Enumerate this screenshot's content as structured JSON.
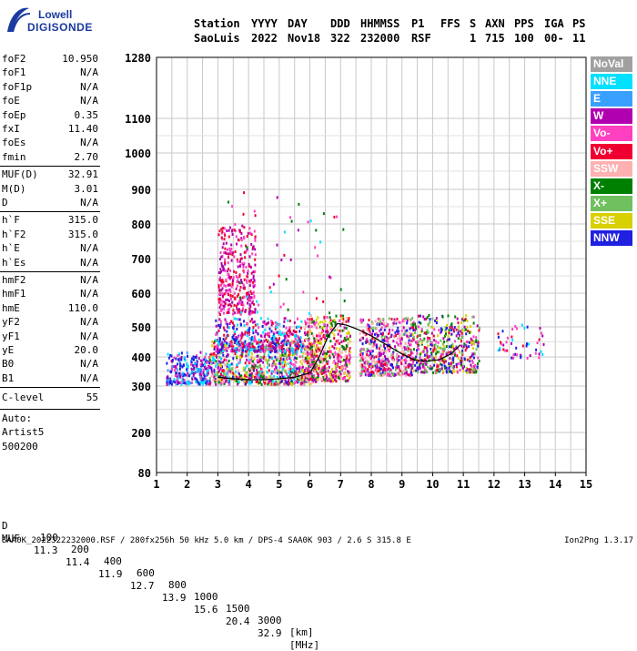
{
  "logo": {
    "line1": "Lowell",
    "line2": "DIGISONDE"
  },
  "header": {
    "row1": [
      "Station",
      "YYYY",
      "DAY",
      "DDD",
      "HHMMSS",
      "P1",
      "FFS",
      "S",
      "AXN",
      "PPS",
      "IGA",
      "PS"
    ],
    "row2": [
      "SaoLuis",
      "2022",
      "Nov18",
      "322",
      "232000",
      "RSF",
      "",
      "1",
      "715",
      "100",
      "00-",
      "11"
    ]
  },
  "params": {
    "group1": [
      {
        "k": "foF2",
        "v": "10.950"
      },
      {
        "k": "foF1",
        "v": "N/A"
      },
      {
        "k": "foF1p",
        "v": "N/A"
      },
      {
        "k": "foE",
        "v": "N/A"
      },
      {
        "k": "foEp",
        "v": "0.35"
      },
      {
        "k": "fxI",
        "v": "11.40"
      },
      {
        "k": "foEs",
        "v": "N/A"
      },
      {
        "k": "fmin",
        "v": "2.70"
      }
    ],
    "group2": [
      {
        "k": "MUF(D)",
        "v": "32.91"
      },
      {
        "k": "M(D)",
        "v": "3.01"
      },
      {
        "k": "D",
        "v": "N/A"
      }
    ],
    "group3": [
      {
        "k": "h`F",
        "v": "315.0"
      },
      {
        "k": "h`F2",
        "v": "315.0"
      },
      {
        "k": "h`E",
        "v": "N/A"
      },
      {
        "k": "h`Es",
        "v": "N/A"
      }
    ],
    "group4": [
      {
        "k": "hmF2",
        "v": "N/A"
      },
      {
        "k": "hmF1",
        "v": "N/A"
      },
      {
        "k": "hmE",
        "v": "110.0"
      },
      {
        "k": "yF2",
        "v": "N/A"
      },
      {
        "k": "yF1",
        "v": "N/A"
      },
      {
        "k": "yE",
        "v": "20.0"
      },
      {
        "k": "B0",
        "v": "N/A"
      },
      {
        "k": "B1",
        "v": "N/A"
      }
    ],
    "clevel": {
      "k": "C-level",
      "v": "55"
    },
    "auto": [
      "Auto:",
      "Artist5",
      "500200"
    ]
  },
  "legend": [
    {
      "label": "NoVal",
      "color": "#a0a0a0"
    },
    {
      "label": "NNE",
      "color": "#00e0ff"
    },
    {
      "label": "E",
      "color": "#3aa0ff"
    },
    {
      "label": "W",
      "color": "#b000b0"
    },
    {
      "label": "Vo-",
      "color": "#ff40c0"
    },
    {
      "label": "Vo+",
      "color": "#f00030"
    },
    {
      "label": "SSW",
      "color": "#ffb0b0"
    },
    {
      "label": "X-",
      "color": "#008000"
    },
    {
      "label": "X+",
      "color": "#70c060"
    },
    {
      "label": "SSE",
      "color": "#d8d000"
    },
    {
      "label": "NNW",
      "color": "#2020e0"
    }
  ],
  "bottom": {
    "d_label": "D",
    "d_values": [
      "100",
      "200",
      "400",
      "600",
      "800",
      "1000",
      "1500",
      "3000",
      "[km]"
    ],
    "muf_label": "MUF",
    "muf_values": [
      "11.3",
      "11.4",
      "11.9",
      "12.7",
      "13.9",
      "15.6",
      "20.4",
      "32.9",
      "[MHz]"
    ]
  },
  "footer": {
    "left": "SAA0K_2022322232000.RSF / 280fx256h 50 kHz 5.0 km / DPS-4 SAA0K 903 / 2.6 S 315.8 E",
    "right": "Ion2Png 1.3.17"
  },
  "chart_data": {
    "type": "scatter",
    "title": "",
    "xlabel": "",
    "ylabel": "",
    "xlim": [
      1,
      15
    ],
    "xticks": [
      1,
      2,
      3,
      4,
      5,
      6,
      7,
      8,
      9,
      10,
      11,
      12,
      13,
      14,
      15
    ],
    "y_ticks": [
      80,
      200,
      300,
      400,
      500,
      600,
      700,
      800,
      900,
      1000,
      1100,
      1280
    ],
    "y_tick_positions": [
      80,
      200,
      300,
      400,
      500,
      600,
      700,
      800,
      900,
      1000,
      1100,
      1280
    ],
    "y_scale": "nonlinear (compressed above 1000 km)",
    "grid": true,
    "legend_position": "right",
    "trace": {
      "name": "",
      "x": [
        3.0,
        3.5,
        4.0,
        4.5,
        5.0,
        5.5,
        6.0,
        6.3,
        6.6,
        6.9,
        7.2,
        7.6,
        8.0,
        8.5,
        9.0,
        9.4,
        9.8,
        10.2,
        10.6,
        10.9
      ],
      "y": [
        330,
        325,
        322,
        322,
        325,
        330,
        345,
        400,
        470,
        510,
        505,
        490,
        470,
        440,
        410,
        390,
        385,
        390,
        410,
        440
      ]
    },
    "clusters": [
      {
        "x": [
          1.3,
          2.7
        ],
        "y": [
          310,
          420
        ],
        "n": 260,
        "colors": [
          "#2020e0",
          "#2020e0",
          "#b000b0",
          "#00e0ff",
          "#ff40c0",
          "#3aa0ff"
        ]
      },
      {
        "x": [
          2.7,
          6.2
        ],
        "y": [
          310,
          460
        ],
        "n": 900,
        "colors": [
          "#ff40c0",
          "#f00030",
          "#b000b0",
          "#2020e0",
          "#ffb0b0",
          "#70c060",
          "#008000",
          "#d8d000",
          "#00e0ff"
        ]
      },
      {
        "x": [
          2.9,
          5.7
        ],
        "y": [
          420,
          530
        ],
        "n": 420,
        "colors": [
          "#b000b0",
          "#ff40c0",
          "#2020e0",
          "#f00030",
          "#00e0ff"
        ]
      },
      {
        "x": [
          3.0,
          4.2
        ],
        "y": [
          540,
          800
        ],
        "n": 330,
        "colors": [
          "#b000b0",
          "#f00030",
          "#ff40c0"
        ]
      },
      {
        "x": [
          5.8,
          7.3
        ],
        "y": [
          320,
          540
        ],
        "n": 520,
        "colors": [
          "#f00030",
          "#ff40c0",
          "#b000b0",
          "#ffb0b0",
          "#008000",
          "#d8d000"
        ]
      },
      {
        "x": [
          7.6,
          9.3
        ],
        "y": [
          340,
          530
        ],
        "n": 520,
        "colors": [
          "#f00030",
          "#ff40c0",
          "#b000b0",
          "#70c060",
          "#ffb0b0",
          "#2020e0"
        ]
      },
      {
        "x": [
          9.3,
          11.5
        ],
        "y": [
          350,
          540
        ],
        "n": 480,
        "colors": [
          "#f00030",
          "#ff40c0",
          "#b000b0",
          "#d8d000",
          "#008000",
          "#70c060",
          "#2020e0"
        ]
      },
      {
        "x": [
          12.1,
          13.6
        ],
        "y": [
          400,
          510
        ],
        "n": 50,
        "colors": [
          "#f00030",
          "#b000b0",
          "#00e0ff",
          "#2020e0",
          "#ff40c0"
        ]
      },
      {
        "x": [
          2.9,
          7.2
        ],
        "y": [
          540,
          900
        ],
        "n": 60,
        "colors": [
          "#b000b0",
          "#ff40c0",
          "#f00030",
          "#008000",
          "#00e0ff"
        ]
      }
    ]
  }
}
